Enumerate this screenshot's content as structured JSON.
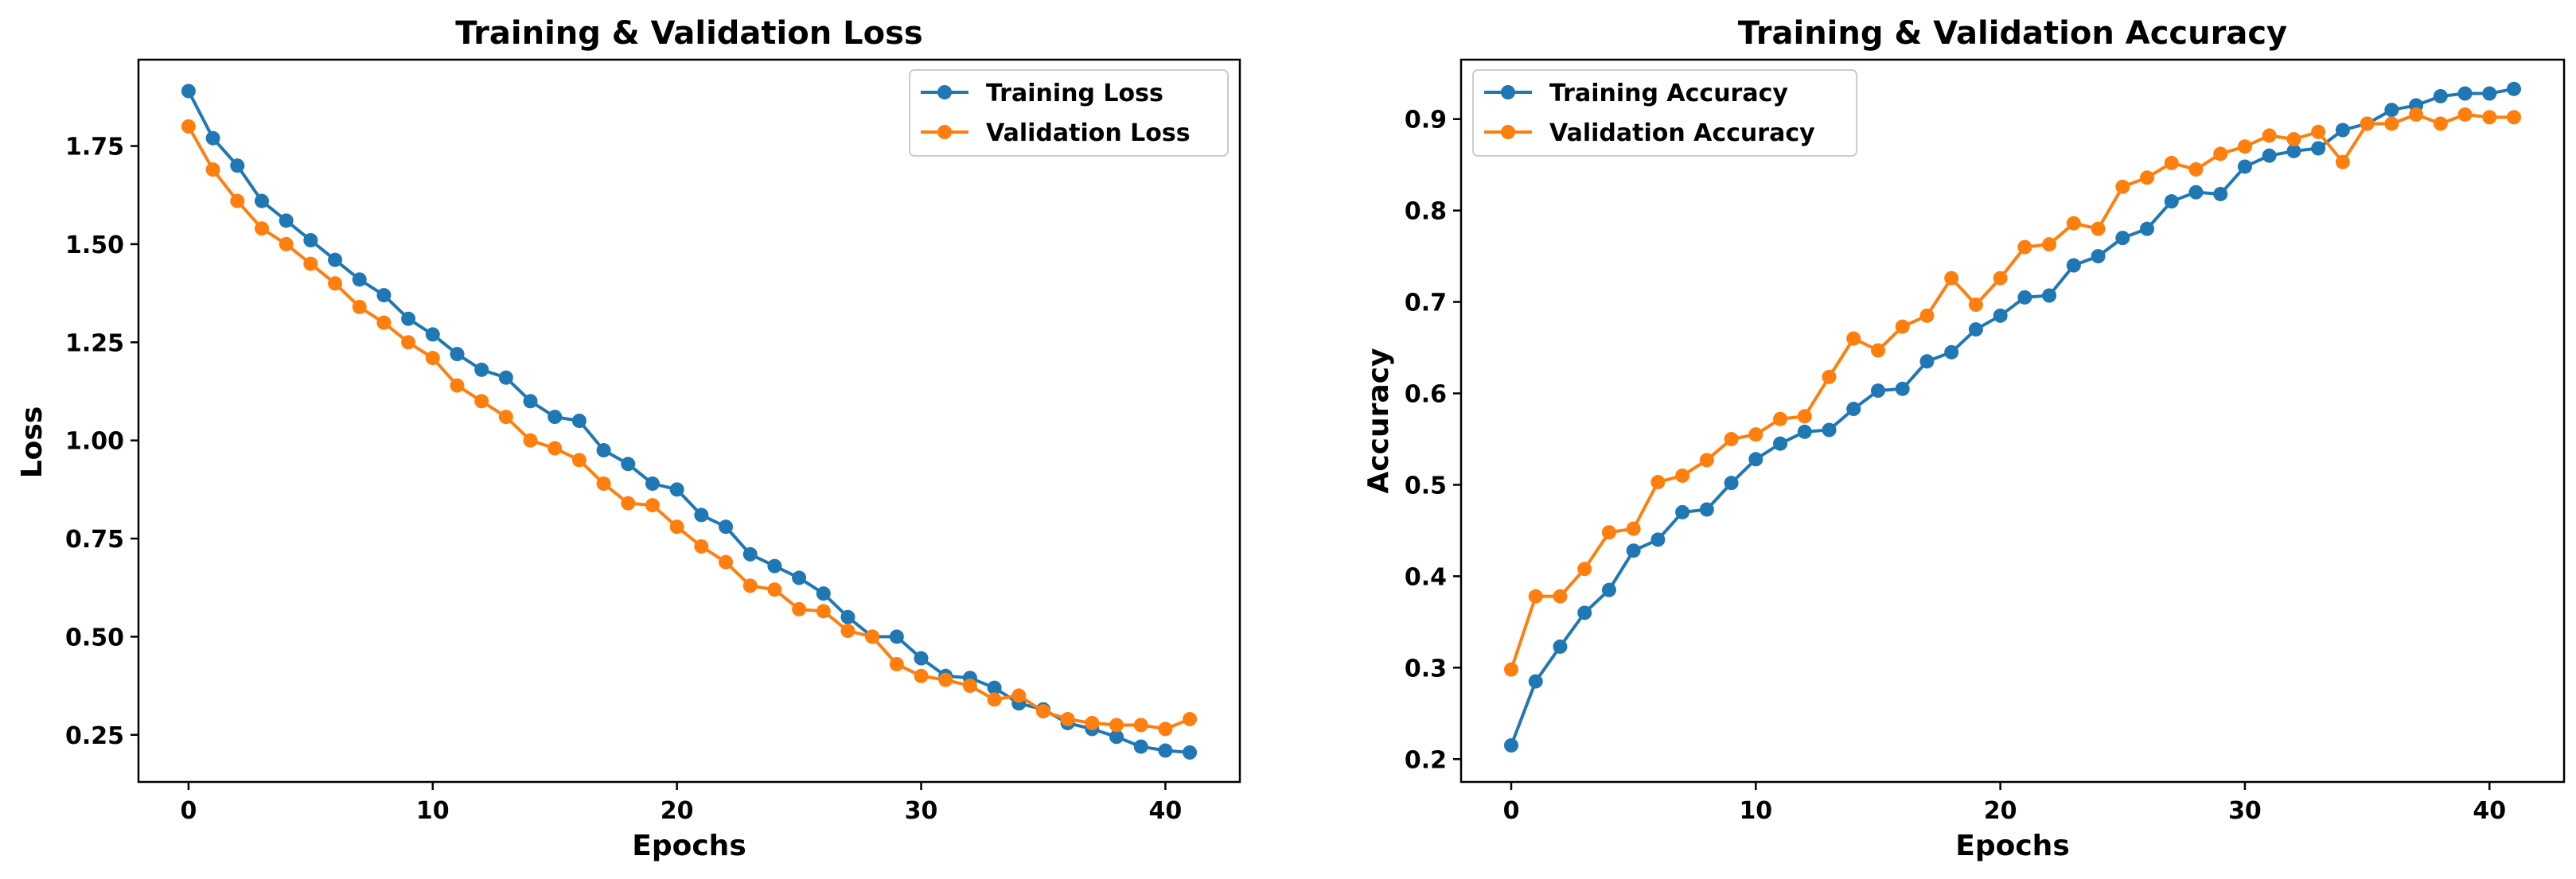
{
  "chart_data": [
    {
      "type": "line",
      "title": "Training & Validation Loss",
      "xlabel": "Epochs",
      "ylabel": "Loss",
      "xlim": [
        -2.05,
        43.05
      ],
      "ylim": [
        0.13,
        1.97
      ],
      "xticks": [
        0,
        10,
        20,
        30,
        40
      ],
      "xtick_labels": [
        "0",
        "10",
        "20",
        "30",
        "40"
      ],
      "yticks": [
        0.25,
        0.5,
        0.75,
        1.0,
        1.25,
        1.5,
        1.75
      ],
      "ytick_labels": [
        "0.25",
        "0.50",
        "0.75",
        "1.00",
        "1.25",
        "1.50",
        "1.75"
      ],
      "grid": false,
      "legend_position": "upper right",
      "x": [
        0,
        1,
        2,
        3,
        4,
        5,
        6,
        7,
        8,
        9,
        10,
        11,
        12,
        13,
        14,
        15,
        16,
        17,
        18,
        19,
        20,
        21,
        22,
        23,
        24,
        25,
        26,
        27,
        28,
        29,
        30,
        31,
        32,
        33,
        34,
        35,
        36,
        37,
        38,
        39,
        40,
        41
      ],
      "series": [
        {
          "name": "Training Loss",
          "color": "#1f77b4",
          "values": [
            1.89,
            1.77,
            1.7,
            1.61,
            1.56,
            1.51,
            1.46,
            1.41,
            1.37,
            1.31,
            1.27,
            1.22,
            1.18,
            1.16,
            1.1,
            1.06,
            1.05,
            0.975,
            0.94,
            0.89,
            0.875,
            0.81,
            0.78,
            0.71,
            0.68,
            0.65,
            0.61,
            0.55,
            0.5,
            0.5,
            0.445,
            0.4,
            0.395,
            0.37,
            0.33,
            0.315,
            0.28,
            0.265,
            0.245,
            0.22,
            0.21,
            0.205
          ]
        },
        {
          "name": "Validation Loss",
          "color": "#ff7f0e",
          "values": [
            1.8,
            1.69,
            1.61,
            1.54,
            1.5,
            1.45,
            1.4,
            1.34,
            1.3,
            1.25,
            1.21,
            1.14,
            1.1,
            1.06,
            1.0,
            0.98,
            0.95,
            0.89,
            0.84,
            0.835,
            0.78,
            0.73,
            0.69,
            0.63,
            0.62,
            0.57,
            0.565,
            0.515,
            0.5,
            0.43,
            0.4,
            0.39,
            0.375,
            0.34,
            0.35,
            0.31,
            0.29,
            0.28,
            0.275,
            0.275,
            0.265,
            0.29
          ]
        }
      ]
    },
    {
      "type": "line",
      "title": "Training & Validation Accuracy",
      "xlabel": "Epochs",
      "ylabel": "Accuracy",
      "xlim": [
        -2.05,
        43.05
      ],
      "ylim": [
        0.175,
        0.965
      ],
      "xticks": [
        0,
        10,
        20,
        30,
        40
      ],
      "xtick_labels": [
        "0",
        "10",
        "20",
        "30",
        "40"
      ],
      "yticks": [
        0.2,
        0.3,
        0.4,
        0.5,
        0.6,
        0.7,
        0.8,
        0.9
      ],
      "ytick_labels": [
        "0.2",
        "0.3",
        "0.4",
        "0.5",
        "0.6",
        "0.7",
        "0.8",
        "0.9"
      ],
      "grid": false,
      "legend_position": "upper left",
      "x": [
        0,
        1,
        2,
        3,
        4,
        5,
        6,
        7,
        8,
        9,
        10,
        11,
        12,
        13,
        14,
        15,
        16,
        17,
        18,
        19,
        20,
        21,
        22,
        23,
        24,
        25,
        26,
        27,
        28,
        29,
        30,
        31,
        32,
        33,
        34,
        35,
        36,
        37,
        38,
        39,
        40,
        41
      ],
      "series": [
        {
          "name": "Training Accuracy",
          "color": "#1f77b4",
          "values": [
            0.215,
            0.285,
            0.323,
            0.36,
            0.385,
            0.428,
            0.44,
            0.47,
            0.473,
            0.502,
            0.528,
            0.545,
            0.558,
            0.56,
            0.583,
            0.603,
            0.605,
            0.635,
            0.645,
            0.67,
            0.685,
            0.705,
            0.707,
            0.74,
            0.75,
            0.77,
            0.78,
            0.81,
            0.82,
            0.818,
            0.848,
            0.86,
            0.865,
            0.868,
            0.888,
            0.895,
            0.91,
            0.915,
            0.925,
            0.928,
            0.928,
            0.933
          ]
        },
        {
          "name": "Validation Accuracy",
          "color": "#ff7f0e",
          "values": [
            0.298,
            0.378,
            0.378,
            0.408,
            0.448,
            0.452,
            0.503,
            0.51,
            0.527,
            0.55,
            0.555,
            0.572,
            0.575,
            0.618,
            0.66,
            0.647,
            0.673,
            0.685,
            0.726,
            0.697,
            0.726,
            0.76,
            0.763,
            0.786,
            0.78,
            0.826,
            0.836,
            0.852,
            0.845,
            0.862,
            0.87,
            0.882,
            0.878,
            0.886,
            0.853,
            0.895,
            0.895,
            0.905,
            0.895,
            0.905,
            0.902,
            0.902
          ]
        }
      ]
    }
  ]
}
